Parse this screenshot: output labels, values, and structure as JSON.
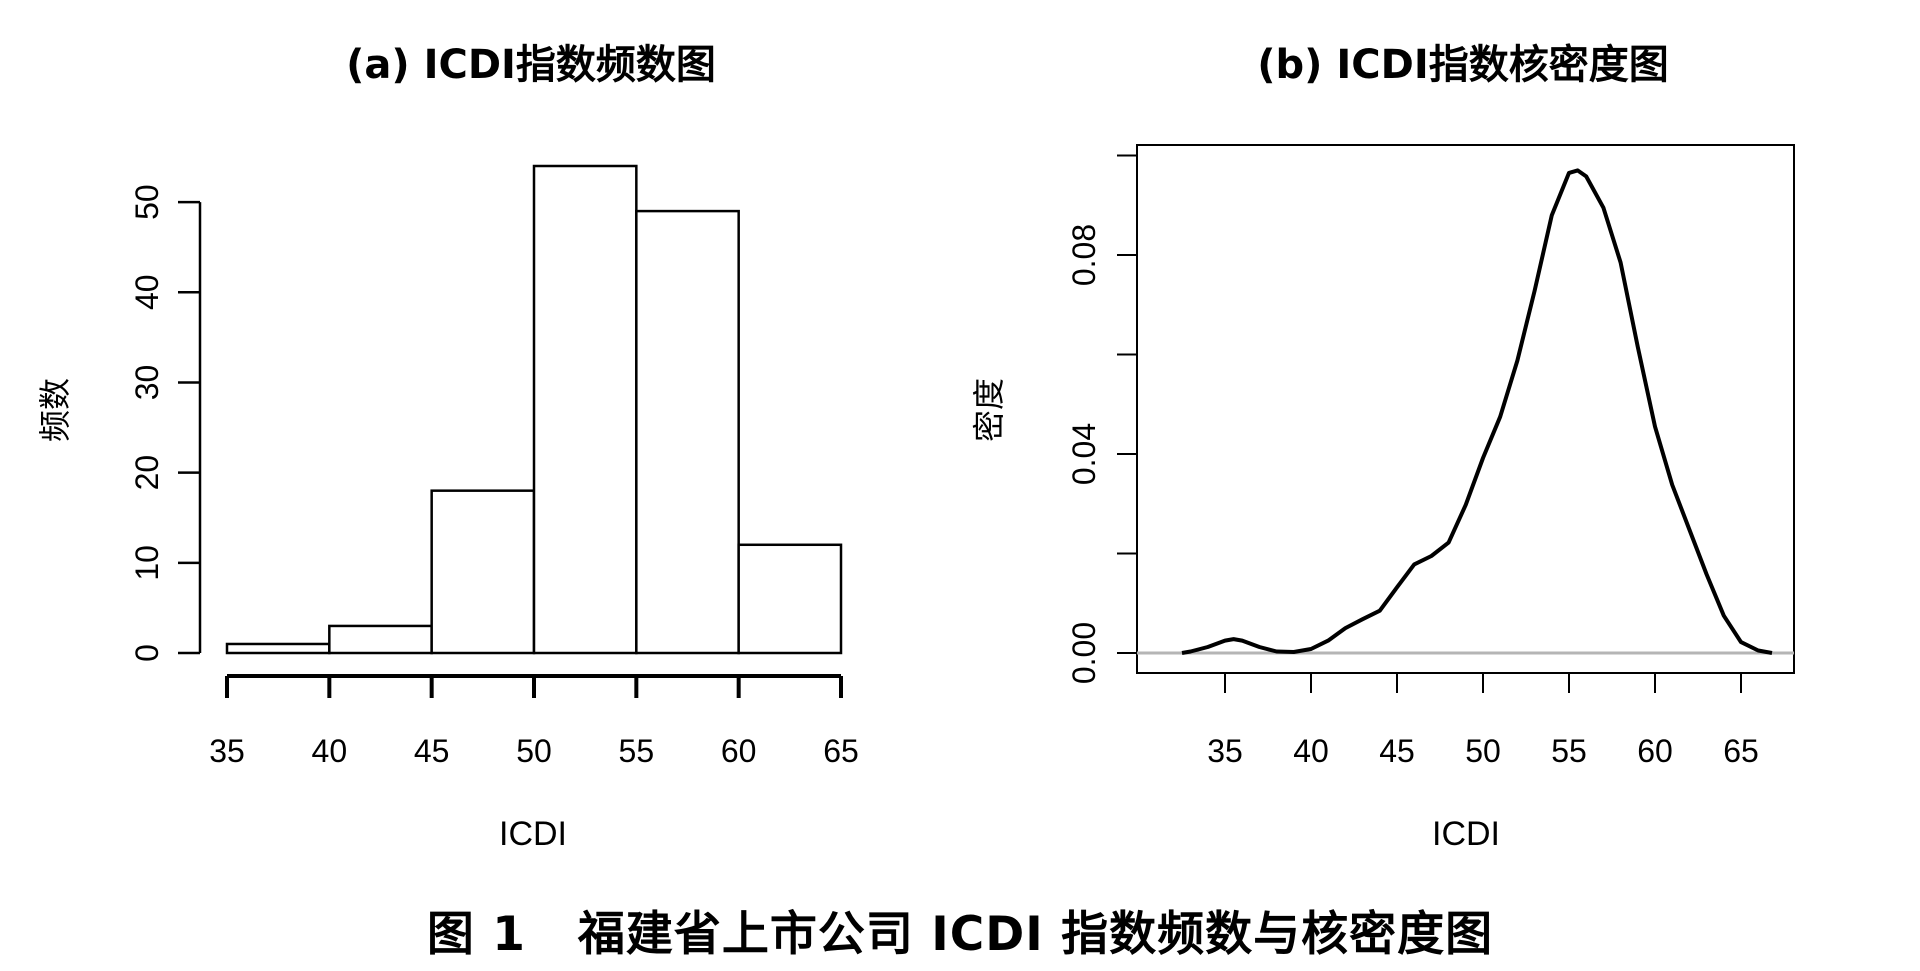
{
  "caption": {
    "label": "图 1",
    "text": "福建省上市公司 ICDI 指数频数与核密度图"
  },
  "chart_data": [
    {
      "type": "bar",
      "title": "(a) ICDI指数频数图",
      "xlabel": "ICDI",
      "ylabel": "频数",
      "bins": [
        [
          35,
          40
        ],
        [
          40,
          45
        ],
        [
          45,
          50
        ],
        [
          50,
          55
        ],
        [
          55,
          60
        ],
        [
          60,
          65
        ]
      ],
      "values": [
        1,
        3,
        18,
        54,
        49,
        12
      ],
      "xlim": [
        35,
        65
      ],
      "xticks": [
        35,
        40,
        45,
        50,
        55,
        60,
        65
      ],
      "ylim": [
        0,
        54
      ],
      "yticks": [
        0,
        10,
        20,
        30,
        40,
        50
      ],
      "grid": false
    },
    {
      "type": "line",
      "title": "(b) ICDI指数核密度图",
      "xlabel": "ICDI",
      "ylabel": "密度",
      "xlim": [
        32,
        67
      ],
      "xticks": [
        35,
        40,
        45,
        50,
        55,
        60,
        65
      ],
      "ylim": [
        0,
        0.1
      ],
      "yticks": [
        "0.00",
        "0.04",
        "0.08"
      ],
      "yminor_ticks": [
        0.02,
        0.06,
        0.1
      ],
      "grid": false,
      "x": [
        32.5,
        33,
        34,
        35,
        35.5,
        36,
        37,
        38,
        39,
        40,
        41,
        42,
        43,
        44,
        45,
        46,
        47,
        48,
        49,
        50,
        51,
        52,
        53,
        54,
        55,
        55.5,
        56,
        57,
        58,
        59,
        60,
        61,
        62,
        63,
        64,
        65,
        66,
        66.8
      ],
      "y": [
        0.0,
        0.0003,
        0.0012,
        0.0025,
        0.0028,
        0.0025,
        0.0012,
        0.0003,
        0.0002,
        0.0008,
        0.0025,
        0.005,
        0.0068,
        0.0085,
        0.0132,
        0.0178,
        0.0195,
        0.0222,
        0.0298,
        0.0392,
        0.0475,
        0.0588,
        0.0728,
        0.088,
        0.0965,
        0.097,
        0.0958,
        0.0895,
        0.0785,
        0.0615,
        0.0455,
        0.0338,
        0.0248,
        0.0158,
        0.0075,
        0.0022,
        0.0005,
        0.0
      ]
    }
  ]
}
